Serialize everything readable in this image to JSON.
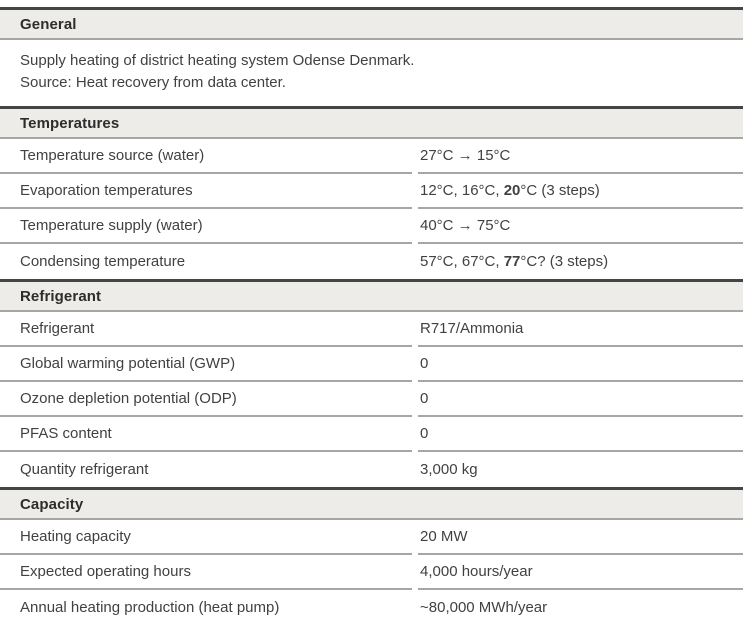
{
  "colors": {
    "header_bg": "#eeece9",
    "dark_border": "#454545",
    "light_border": "#a8a6a2",
    "text": "#414141",
    "header_text": "#2d2d2d"
  },
  "sections": [
    {
      "name": "general",
      "header": "General",
      "description_lines": [
        "Supply heating of district heating system Odense Denmark.",
        "Source: Heat recovery from data center."
      ],
      "rows": []
    },
    {
      "name": "temperatures",
      "header": "Temperatures",
      "rows": [
        {
          "label": "Temperature source (water)",
          "value": [
            {
              "text": "27°C → 15°C",
              "bold": false
            }
          ]
        },
        {
          "label": "Evaporation temperatures",
          "value": [
            {
              "text": "12°C, 16°C, ",
              "bold": false
            },
            {
              "text": "20",
              "bold": true
            },
            {
              "text": "°C (3 steps)",
              "bold": false
            }
          ]
        },
        {
          "label": "Temperature supply (water)",
          "value": [
            {
              "text": "40°C → 75°C",
              "bold": false
            }
          ]
        },
        {
          "label": "Condensing temperature",
          "value": [
            {
              "text": "57°C, 67°C, ",
              "bold": false
            },
            {
              "text": "77",
              "bold": true
            },
            {
              "text": "°C? (3 steps)",
              "bold": false
            }
          ]
        }
      ]
    },
    {
      "name": "refrigerant",
      "header": "Refrigerant",
      "rows": [
        {
          "label": "Refrigerant",
          "value": [
            {
              "text": "R717/Ammonia",
              "bold": false
            }
          ]
        },
        {
          "label": "Global warming potential (GWP)",
          "value": [
            {
              "text": "0",
              "bold": false
            }
          ]
        },
        {
          "label": "Ozone depletion potential (ODP)",
          "value": [
            {
              "text": "0",
              "bold": false
            }
          ]
        },
        {
          "label": "PFAS content",
          "value": [
            {
              "text": "0",
              "bold": false
            }
          ]
        },
        {
          "label": "Quantity refrigerant",
          "value": [
            {
              "text": "3,000 kg",
              "bold": false
            }
          ]
        }
      ]
    },
    {
      "name": "capacity",
      "header": "Capacity",
      "rows": [
        {
          "label": "Heating capacity",
          "value": [
            {
              "text": "20 MW",
              "bold": false
            }
          ]
        },
        {
          "label": "Expected operating hours",
          "value": [
            {
              "text": "4,000 hours/year",
              "bold": false
            }
          ]
        },
        {
          "label": "Annual heating production (heat pump)",
          "value": [
            {
              "text": "~80,000 MWh/year",
              "bold": false
            }
          ]
        }
      ]
    }
  ]
}
